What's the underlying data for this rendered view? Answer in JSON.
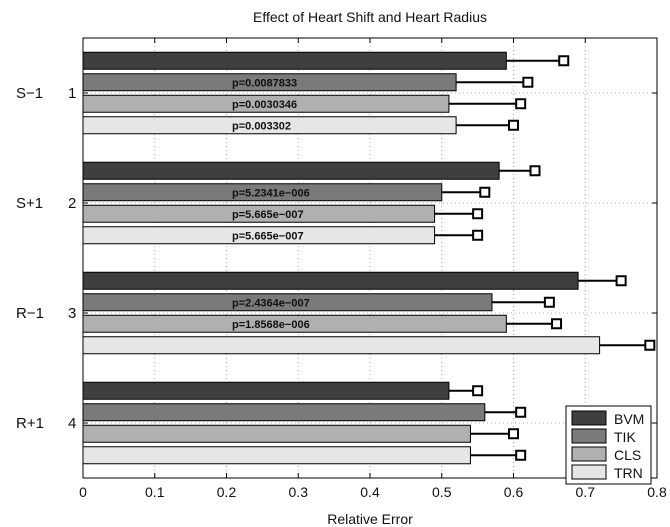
{
  "chart_data": {
    "type": "bar",
    "orientation": "horizontal",
    "title": "Effect of Heart Shift and Heart Radius",
    "xlabel": "Relative Error",
    "ylabel": "",
    "xlim": [
      0,
      0.8
    ],
    "xticks": [
      "0",
      "0.1",
      "0.2",
      "0.3",
      "0.4",
      "0.5",
      "0.6",
      "0.7",
      "0.8"
    ],
    "grid": true,
    "legend_position": "bottom-right",
    "groups": [
      {
        "name": "S−1",
        "index": "1"
      },
      {
        "name": "S+1",
        "index": "2"
      },
      {
        "name": "R−1",
        "index": "3"
      },
      {
        "name": "R+1",
        "index": "4"
      }
    ],
    "series": [
      {
        "name": "BVM",
        "color": "#3f3f3f",
        "values": [
          0.59,
          0.58,
          0.69,
          0.51
        ],
        "errors": [
          0.67,
          0.63,
          0.75,
          0.55
        ],
        "pvalues": [
          "",
          "",
          "",
          ""
        ]
      },
      {
        "name": "TIK",
        "color": "#7a7a7a",
        "values": [
          0.52,
          0.5,
          0.57,
          0.56
        ],
        "errors": [
          0.62,
          0.56,
          0.65,
          0.61
        ],
        "pvalues": [
          "p=0.0087833",
          "p=5.2341e−006",
          "p=2.4364e−007",
          ""
        ]
      },
      {
        "name": "CLS",
        "color": "#b0b0b0",
        "values": [
          0.51,
          0.49,
          0.59,
          0.54
        ],
        "errors": [
          0.61,
          0.55,
          0.66,
          0.6
        ],
        "pvalues": [
          "p=0.0030346",
          "p=5.665e−007",
          "p=1.8568e−006",
          ""
        ]
      },
      {
        "name": "TRN",
        "color": "#e6e6e6",
        "values": [
          0.52,
          0.49,
          0.72,
          0.54
        ],
        "errors": [
          0.6,
          0.55,
          0.79,
          0.61
        ],
        "pvalues": [
          "p=0.003302",
          "p=5.665e−007",
          "",
          ""
        ]
      }
    ]
  }
}
